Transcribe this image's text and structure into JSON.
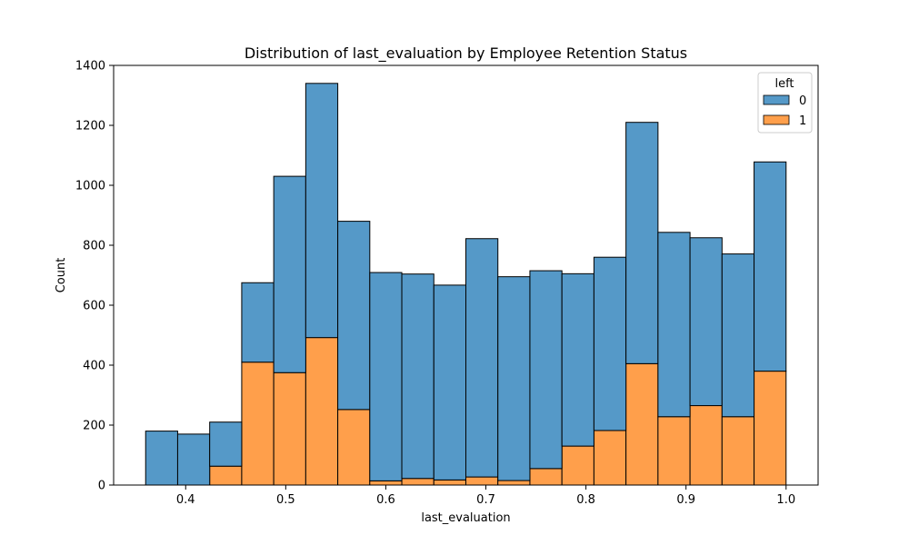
{
  "chart_data": {
    "type": "bar",
    "stacked": true,
    "title": "Distribution of last_evaluation by Employee Retention Status",
    "xlabel": "last_evaluation",
    "ylabel": "Count",
    "xlim": [
      0.328,
      1.032
    ],
    "ylim": [
      0,
      1400
    ],
    "x_ticks": [
      0.4,
      0.5,
      0.6,
      0.7,
      0.8,
      0.9,
      1.0
    ],
    "x_tick_labels": [
      "0.4",
      "0.5",
      "0.6",
      "0.7",
      "0.8",
      "0.9",
      "1.0"
    ],
    "y_ticks": [
      0,
      200,
      400,
      600,
      800,
      1000,
      1200,
      1400
    ],
    "y_tick_labels": [
      "0",
      "200",
      "400",
      "600",
      "800",
      "1000",
      "1200",
      "1400"
    ],
    "bin_edges": [
      0.36,
      0.392,
      0.424,
      0.456,
      0.488,
      0.52,
      0.552,
      0.584,
      0.616,
      0.648,
      0.68,
      0.712,
      0.744,
      0.776,
      0.808,
      0.84,
      0.872,
      0.904,
      0.936,
      0.968,
      1.0
    ],
    "legend": {
      "title": "left",
      "position": "upper right"
    },
    "series": [
      {
        "name": "1",
        "color": "#ff9f4b",
        "values": [
          0,
          0,
          63,
          410,
          375,
          492,
          252,
          14,
          22,
          17,
          27,
          15,
          55,
          130,
          182,
          405,
          228,
          265,
          228,
          380
        ]
      },
      {
        "name": "0",
        "color": "#5599c8",
        "values": [
          180,
          170,
          147,
          265,
          655,
          848,
          628,
          695,
          682,
          650,
          795,
          680,
          660,
          575,
          578,
          805,
          615,
          560,
          543,
          698
        ]
      }
    ]
  }
}
